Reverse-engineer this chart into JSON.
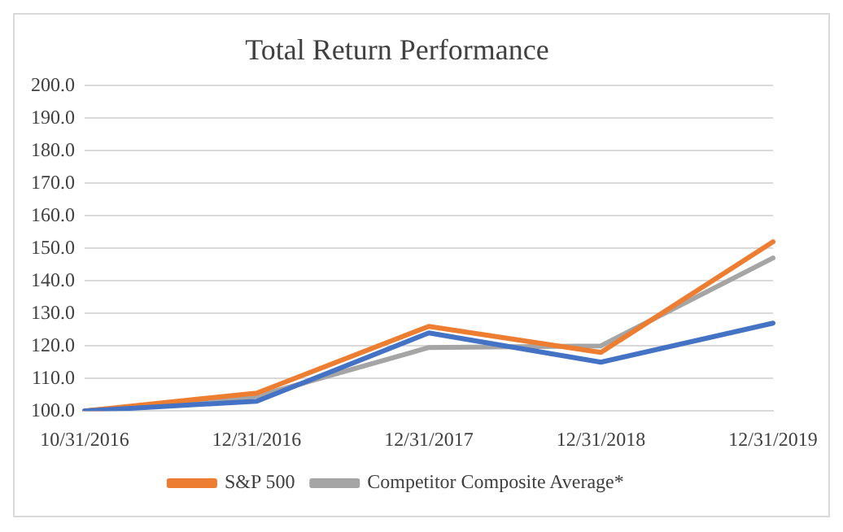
{
  "chart_data": {
    "type": "line",
    "title": "Total Return Performance",
    "categories": [
      "10/31/2016",
      "12/31/2016",
      "12/31/2017",
      "12/31/2018",
      "12/31/2019"
    ],
    "series": [
      {
        "color": "#4472c4",
        "values": [
          100,
          103,
          124,
          115,
          127
        ]
      },
      {
        "name": "S&P 500",
        "color": "#ed7d31",
        "values": [
          100,
          105.5,
          126,
          118,
          152
        ]
      },
      {
        "name": "Competitor Composite Average*",
        "color": "#a5a5a5",
        "values": [
          100,
          104.5,
          119.5,
          120,
          147
        ]
      }
    ],
    "ylim": [
      100,
      200
    ],
    "yticks": [
      {
        "value": 100,
        "label": "100.0"
      },
      {
        "value": 110,
        "label": "110.0"
      },
      {
        "value": 120,
        "label": "120.0"
      },
      {
        "value": 130,
        "label": "130.0"
      },
      {
        "value": 140,
        "label": "140.0"
      },
      {
        "value": 150,
        "label": "150.0"
      },
      {
        "value": 160,
        "label": "160.0"
      },
      {
        "value": 170,
        "label": "170.0"
      },
      {
        "value": 180,
        "label": "180.0"
      },
      {
        "value": 190,
        "label": "190.0"
      },
      {
        "value": 200,
        "label": "200.0"
      }
    ],
    "grid": "y",
    "legend": "bottom",
    "marker": "none",
    "line_style": "solid"
  }
}
